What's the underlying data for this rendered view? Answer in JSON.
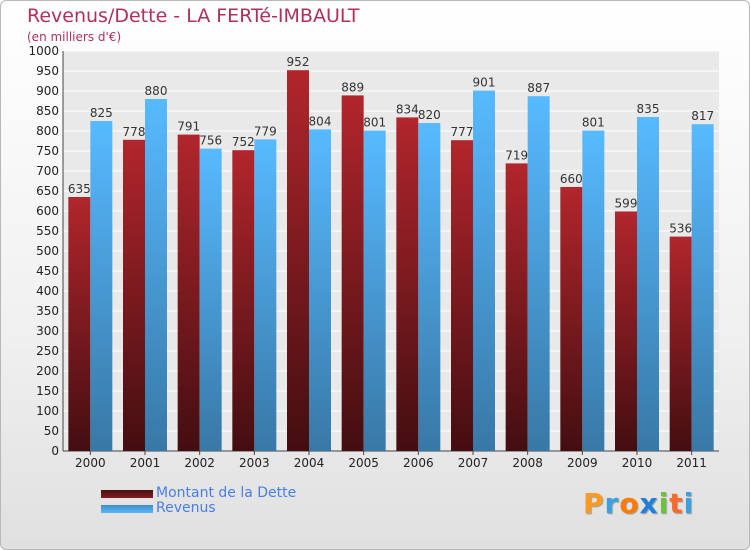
{
  "chart_data": {
    "type": "bar",
    "title": "Revenus/Dette - LA FERTé-IMBAULT",
    "subtitle": "(en milliers d'€)",
    "categories": [
      "2000",
      "2001",
      "2002",
      "2003",
      "2004",
      "2005",
      "2006",
      "2007",
      "2008",
      "2009",
      "2010",
      "2011"
    ],
    "series": [
      {
        "name": "Montant de la Dette",
        "color": "#7a1a1e",
        "values": [
          635,
          778,
          791,
          752,
          952,
          889,
          834,
          777,
          719,
          660,
          599,
          536
        ]
      },
      {
        "name": "Revenus",
        "color": "#4ea6e6",
        "values": [
          825,
          880,
          756,
          779,
          804,
          801,
          820,
          901,
          887,
          801,
          835,
          817
        ]
      }
    ],
    "ylim": [
      0,
      1000
    ],
    "ytick_step": 50,
    "grid": true,
    "legend_position": "bottom-left"
  },
  "logo": {
    "text": "Proxiti",
    "colors": [
      "#ff9a1e",
      "#3aa0e0",
      "#ff7a00",
      "#1e80d8",
      "#6cc23a",
      "#ff6a2a",
      "#3aa0e0"
    ]
  }
}
